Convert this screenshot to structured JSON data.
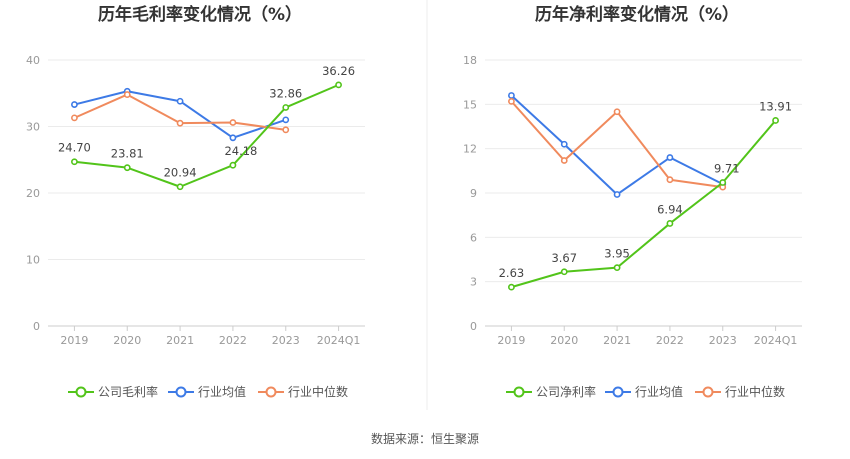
{
  "source_note": "数据来源：恒生聚源",
  "chart_data": [
    {
      "type": "line",
      "title": "历年毛利率变化情况（%）",
      "categories": [
        "2019",
        "2020",
        "2021",
        "2022",
        "2023",
        "2024Q1"
      ],
      "ylim": [
        0,
        40
      ],
      "yticks": [
        "0",
        "10",
        "20",
        "30",
        "40"
      ],
      "grid": true,
      "legend_position": "bottom",
      "series": [
        {
          "name": "公司毛利率",
          "color": "#52c41a",
          "values": [
            24.7,
            23.81,
            20.94,
            24.18,
            32.86,
            36.26
          ],
          "labels": [
            "24.70",
            "23.81",
            "20.94",
            "24.18",
            "32.86",
            "36.26"
          ]
        },
        {
          "name": "行业均值",
          "color": "#3d7ae6",
          "values": [
            33.3,
            35.3,
            33.8,
            28.3,
            31.0,
            null
          ]
        },
        {
          "name": "行业中位数",
          "color": "#f08a5d",
          "values": [
            31.3,
            34.8,
            30.5,
            30.6,
            29.5,
            null
          ]
        }
      ]
    },
    {
      "type": "line",
      "title": "历年净利率变化情况（%）",
      "categories": [
        "2019",
        "2020",
        "2021",
        "2022",
        "2023",
        "2024Q1"
      ],
      "ylim": [
        0,
        18
      ],
      "yticks": [
        "0",
        "3",
        "6",
        "9",
        "12",
        "15",
        "18"
      ],
      "grid": true,
      "legend_position": "bottom",
      "series": [
        {
          "name": "公司净利率",
          "color": "#52c41a",
          "values": [
            2.63,
            3.67,
            3.95,
            6.94,
            9.71,
            13.91
          ],
          "labels": [
            "2.63",
            "3.67",
            "3.95",
            "6.94",
            "9.71",
            "13.91"
          ]
        },
        {
          "name": "行业均值",
          "color": "#3d7ae6",
          "values": [
            15.6,
            12.3,
            8.9,
            11.4,
            9.6,
            null
          ]
        },
        {
          "name": "行业中位数",
          "color": "#f08a5d",
          "values": [
            15.2,
            11.2,
            14.5,
            9.9,
            9.4,
            null
          ]
        }
      ]
    }
  ]
}
